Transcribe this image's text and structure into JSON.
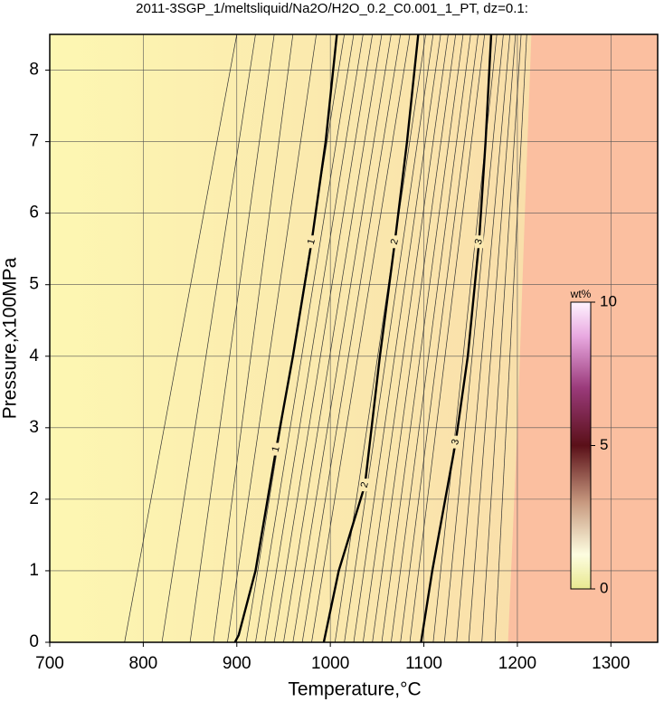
{
  "chart_data": {
    "type": "contour",
    "title": "2011-3SGP_1/meltsliquid/Na2O/H2O_0.2_C0.001_1_PT, dz=0.1:",
    "x_label": "Temperature,°C",
    "y_label": "Pressure,x100MPa",
    "xlim": [
      700,
      1350
    ],
    "ylim": [
      0,
      8.5
    ],
    "xticks": [
      700,
      800,
      900,
      1000,
      1100,
      1200,
      1300
    ],
    "yticks": [
      0,
      1,
      2,
      3,
      4,
      5,
      6,
      7,
      8
    ],
    "grid": true,
    "background_colors": [
      "#fdf7b2",
      "#f8d8a8"
    ],
    "region": {
      "x": [
        1190,
        1200,
        1208,
        1215
      ],
      "y": [
        0,
        3,
        6,
        8.5
      ],
      "color": "#fbbfa0"
    },
    "contours": [
      {
        "name": "1",
        "x": [
          898,
          902,
          920,
          942,
          960,
          980,
          995,
          1007
        ],
        "y": [
          0,
          0.1,
          1,
          2.7,
          4,
          5.6,
          7,
          8.5
        ]
      },
      {
        "name": "2",
        "x": [
          993,
          1009,
          1037,
          1053,
          1069,
          1082,
          1094
        ],
        "y": [
          0,
          1,
          2.2,
          4,
          5.6,
          7,
          8.5
        ]
      },
      {
        "name": "3",
        "x": [
          1097,
          1109,
          1134,
          1147,
          1159,
          1166,
          1172
        ],
        "y": [
          0,
          1,
          2.8,
          4,
          5.6,
          7,
          8.5
        ]
      }
    ],
    "thin_contours": {
      "bottom": [
        780,
        820,
        850,
        875,
        890,
        910,
        920,
        930,
        940,
        950,
        960,
        970,
        980,
        1005,
        1015,
        1025,
        1035,
        1045,
        1055,
        1065,
        1075,
        1085,
        1110,
        1122,
        1135,
        1148,
        1162,
        1176
      ],
      "top": [
        900,
        920,
        940,
        960,
        985,
        1015,
        1025,
        1035,
        1045,
        1055,
        1065,
        1075,
        1085,
        1102,
        1110,
        1118,
        1126,
        1134,
        1142,
        1150,
        1158,
        1165,
        1178,
        1185,
        1192,
        1198,
        1204,
        1210
      ]
    },
    "colorbar": {
      "label": "wt%",
      "lim": [
        0,
        10
      ],
      "ticks": [
        0,
        5,
        10
      ]
    }
  }
}
